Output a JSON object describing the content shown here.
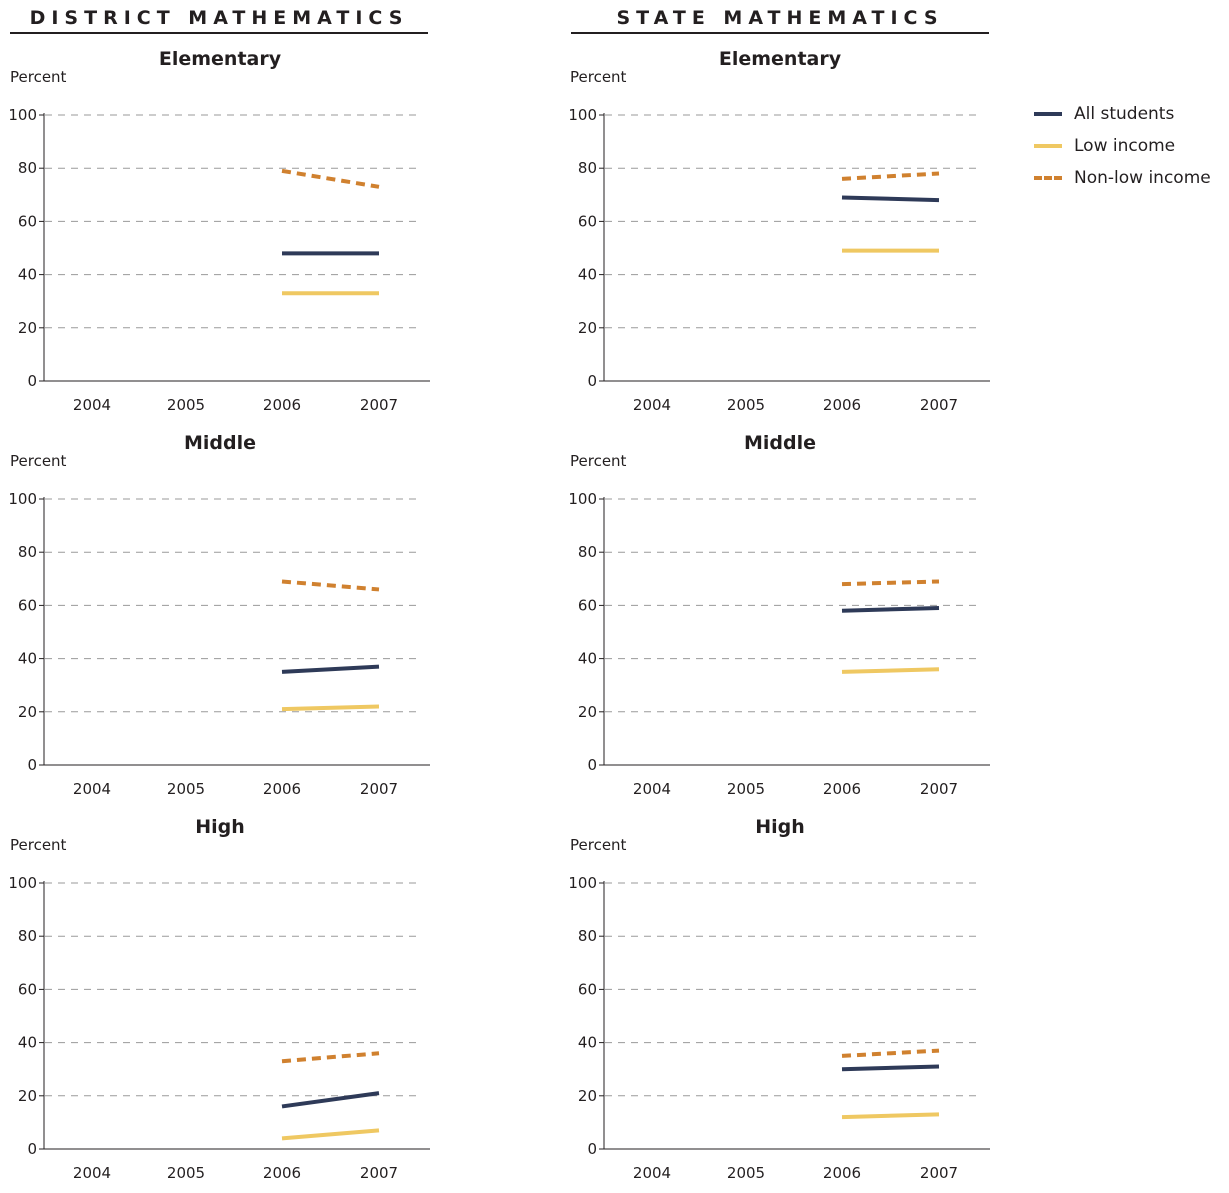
{
  "headers": {
    "district": "DISTRICT MATHEMATICS",
    "state": "STATE MATHEMATICS"
  },
  "legend": [
    {
      "name": "All students",
      "color": "#2e3a58",
      "style": "solid"
    },
    {
      "name": "Low income",
      "color": "#efc862",
      "style": "solid"
    },
    {
      "name": "Non-low income",
      "color": "#d0812f",
      "style": "dashed"
    }
  ],
  "chart_data": [
    {
      "type": "line",
      "title": "Elementary",
      "group": "district",
      "ylabel": "Percent",
      "x": [
        "2004",
        "2005",
        "2006",
        "2007"
      ],
      "ylim": [
        0,
        100
      ],
      "yticks": [
        0,
        20,
        40,
        60,
        80,
        100
      ],
      "grid": true,
      "series": [
        {
          "name": "All students",
          "values": [
            null,
            null,
            48,
            48
          ]
        },
        {
          "name": "Low income",
          "values": [
            null,
            null,
            33,
            33
          ]
        },
        {
          "name": "Non-low income",
          "values": [
            null,
            null,
            79,
            73
          ]
        }
      ]
    },
    {
      "type": "line",
      "title": "Elementary",
      "group": "state",
      "ylabel": "Percent",
      "x": [
        "2004",
        "2005",
        "2006",
        "2007"
      ],
      "ylim": [
        0,
        100
      ],
      "yticks": [
        0,
        20,
        40,
        60,
        80,
        100
      ],
      "grid": true,
      "series": [
        {
          "name": "All students",
          "values": [
            null,
            null,
            69,
            68
          ]
        },
        {
          "name": "Low income",
          "values": [
            null,
            null,
            49,
            49
          ]
        },
        {
          "name": "Non-low income",
          "values": [
            null,
            null,
            76,
            78
          ]
        }
      ]
    },
    {
      "type": "line",
      "title": "Middle",
      "group": "district",
      "ylabel": "Percent",
      "x": [
        "2004",
        "2005",
        "2006",
        "2007"
      ],
      "ylim": [
        0,
        100
      ],
      "yticks": [
        0,
        20,
        40,
        60,
        80,
        100
      ],
      "grid": true,
      "series": [
        {
          "name": "All students",
          "values": [
            null,
            null,
            35,
            37
          ]
        },
        {
          "name": "Low income",
          "values": [
            null,
            null,
            21,
            22
          ]
        },
        {
          "name": "Non-low income",
          "values": [
            null,
            null,
            69,
            66
          ]
        }
      ]
    },
    {
      "type": "line",
      "title": "Middle",
      "group": "state",
      "ylabel": "Percent",
      "x": [
        "2004",
        "2005",
        "2006",
        "2007"
      ],
      "ylim": [
        0,
        100
      ],
      "yticks": [
        0,
        20,
        40,
        60,
        80,
        100
      ],
      "grid": true,
      "series": [
        {
          "name": "All students",
          "values": [
            null,
            null,
            58,
            59
          ]
        },
        {
          "name": "Low income",
          "values": [
            null,
            null,
            35,
            36
          ]
        },
        {
          "name": "Non-low income",
          "values": [
            null,
            null,
            68,
            69
          ]
        }
      ]
    },
    {
      "type": "line",
      "title": "High",
      "group": "district",
      "ylabel": "Percent",
      "x": [
        "2004",
        "2005",
        "2006",
        "2007"
      ],
      "ylim": [
        0,
        100
      ],
      "yticks": [
        0,
        20,
        40,
        60,
        80,
        100
      ],
      "grid": true,
      "series": [
        {
          "name": "All students",
          "values": [
            null,
            null,
            16,
            21
          ]
        },
        {
          "name": "Low income",
          "values": [
            null,
            null,
            4,
            7
          ]
        },
        {
          "name": "Non-low income",
          "values": [
            null,
            null,
            33,
            36
          ]
        }
      ]
    },
    {
      "type": "line",
      "title": "High",
      "group": "state",
      "ylabel": "Percent",
      "x": [
        "2004",
        "2005",
        "2006",
        "2007"
      ],
      "ylim": [
        0,
        100
      ],
      "yticks": [
        0,
        20,
        40,
        60,
        80,
        100
      ],
      "grid": true,
      "series": [
        {
          "name": "All students",
          "values": [
            null,
            null,
            30,
            31
          ]
        },
        {
          "name": "Low income",
          "values": [
            null,
            null,
            12,
            13
          ]
        },
        {
          "name": "Non-low income",
          "values": [
            null,
            null,
            35,
            37
          ]
        }
      ]
    }
  ]
}
